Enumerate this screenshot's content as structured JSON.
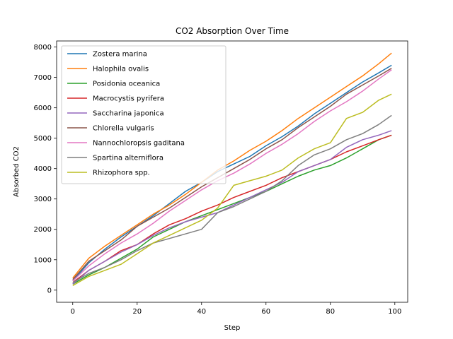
{
  "chart_data": {
    "type": "line",
    "title": "CO2 Absorption Over Time",
    "xlabel": "Step",
    "ylabel": "Absorbed CO2",
    "xlim": [
      -5,
      104
    ],
    "ylim": [
      -400,
      8200
    ],
    "xticks": [
      0,
      20,
      40,
      60,
      80,
      100
    ],
    "yticks": [
      0,
      1000,
      2000,
      3000,
      4000,
      5000,
      6000,
      7000,
      8000
    ],
    "grid": false,
    "legend_position": "upper-left",
    "x": [
      0,
      5,
      10,
      15,
      20,
      25,
      30,
      35,
      40,
      45,
      50,
      55,
      60,
      65,
      70,
      75,
      80,
      85,
      90,
      95,
      99
    ],
    "series": [
      {
        "name": "Zostera marina",
        "color": "#1f77b4",
        "values": [
          300,
          900,
          1350,
          1750,
          2100,
          2450,
          2850,
          3250,
          3550,
          3900,
          4150,
          4400,
          4750,
          5050,
          5400,
          5800,
          6150,
          6500,
          6850,
          7150,
          7400
        ]
      },
      {
        "name": "Halophila ovalis",
        "color": "#ff7f0e",
        "values": [
          400,
          1050,
          1450,
          1800,
          2150,
          2500,
          2800,
          3150,
          3550,
          3950,
          4250,
          4600,
          4900,
          5250,
          5650,
          6000,
          6350,
          6700,
          7050,
          7450,
          7800
        ]
      },
      {
        "name": "Posidonia oceanica",
        "color": "#2ca02c",
        "values": [
          200,
          500,
          750,
          1050,
          1350,
          1750,
          2000,
          2250,
          2450,
          2650,
          2850,
          3050,
          3250,
          3500,
          3750,
          3950,
          4100,
          4350,
          4650,
          4950,
          5100
        ]
      },
      {
        "name": "Macrocystis pyrifera",
        "color": "#d62728",
        "values": [
          250,
          650,
          950,
          1300,
          1500,
          1850,
          2150,
          2350,
          2600,
          2800,
          3050,
          3250,
          3450,
          3700,
          3900,
          4100,
          4300,
          4550,
          4750,
          4950,
          5100
        ]
      },
      {
        "name": "Saccharina japonica",
        "color": "#9467bd",
        "values": [
          200,
          650,
          950,
          1250,
          1500,
          1800,
          2050,
          2250,
          2400,
          2550,
          2800,
          3050,
          3300,
          3550,
          3900,
          4100,
          4300,
          4700,
          4950,
          5100,
          5250
        ]
      },
      {
        "name": "Chlorella vulgaris",
        "color": "#8c564b",
        "values": [
          350,
          950,
          1300,
          1650,
          2100,
          2400,
          2700,
          3050,
          3400,
          3700,
          4000,
          4300,
          4650,
          4950,
          5350,
          5700,
          6050,
          6450,
          6750,
          7050,
          7300
        ]
      },
      {
        "name": "Nannochloropsis gaditana",
        "color": "#e377c2",
        "values": [
          300,
          800,
          1200,
          1550,
          1850,
          2200,
          2600,
          2950,
          3300,
          3600,
          3850,
          4150,
          4500,
          4800,
          5150,
          5550,
          5900,
          6200,
          6550,
          6950,
          7250
        ]
      },
      {
        "name": "Spartina alterniflora",
        "color": "#7f7f7f",
        "values": [
          250,
          550,
          750,
          1000,
          1300,
          1550,
          1700,
          1850,
          2000,
          2550,
          2750,
          3000,
          3250,
          3600,
          4100,
          4450,
          4650,
          4950,
          5150,
          5450,
          5750
        ]
      },
      {
        "name": "Rhizophora spp.",
        "color": "#bcbd22",
        "values": [
          150,
          450,
          650,
          850,
          1200,
          1550,
          1800,
          2050,
          2300,
          2700,
          3450,
          3600,
          3750,
          3950,
          4350,
          4650,
          4850,
          5650,
          5850,
          6250,
          6450
        ]
      }
    ]
  }
}
